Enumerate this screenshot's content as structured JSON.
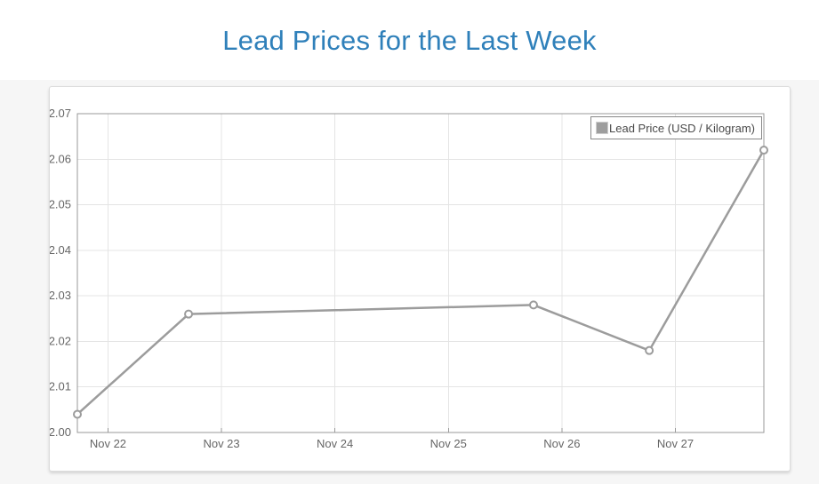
{
  "page": {
    "title": "Lead Prices for the Last Week"
  },
  "legend": {
    "label": "Lead Price (USD / Kilogram)",
    "swatch_color": "#9e9e9e"
  },
  "colors": {
    "title": "#2f80ba",
    "line": "#9c9c9c",
    "marker_fill": "#ffffff",
    "grid": "#e4e4e4",
    "axis_border": "#999999",
    "tick_text": "#666666",
    "panel_border": "#dcdcdc"
  },
  "chart_data": {
    "type": "line",
    "title": "Lead Prices for the Last Week",
    "xlabel": "",
    "ylabel": "",
    "grid": true,
    "legend_position": "top-right",
    "legend_entries": [
      "Lead Price (USD / Kilogram)"
    ],
    "x_axis": {
      "min": 21.73,
      "max": 27.78,
      "ticks": [
        {
          "v": 22,
          "label": "Nov 22"
        },
        {
          "v": 23,
          "label": "Nov 23"
        },
        {
          "v": 24,
          "label": "Nov 24"
        },
        {
          "v": 25,
          "label": "Nov 25"
        },
        {
          "v": 26,
          "label": "Nov 26"
        },
        {
          "v": 27,
          "label": "Nov 27"
        }
      ]
    },
    "y_axis": {
      "min": 2.0,
      "max": 2.07,
      "tick_step": 0.01,
      "tick_labels": [
        "2.00",
        "2.01",
        "2.02",
        "2.03",
        "2.04",
        "2.05",
        "2.06",
        "2.07"
      ]
    },
    "series": [
      {
        "name": "Lead Price (USD / Kilogram)",
        "color": "#9c9c9c",
        "points": [
          {
            "x": 21.73,
            "date": "Nov 22",
            "value": 2.004
          },
          {
            "x": 22.71,
            "date": "Nov 23",
            "value": 2.026
          },
          {
            "x": 25.75,
            "date": "Nov 26",
            "value": 2.028
          },
          {
            "x": 26.77,
            "date": "Nov 27",
            "value": 2.018
          },
          {
            "x": 27.78,
            "date": "Nov 28",
            "value": 2.062
          }
        ]
      }
    ]
  }
}
